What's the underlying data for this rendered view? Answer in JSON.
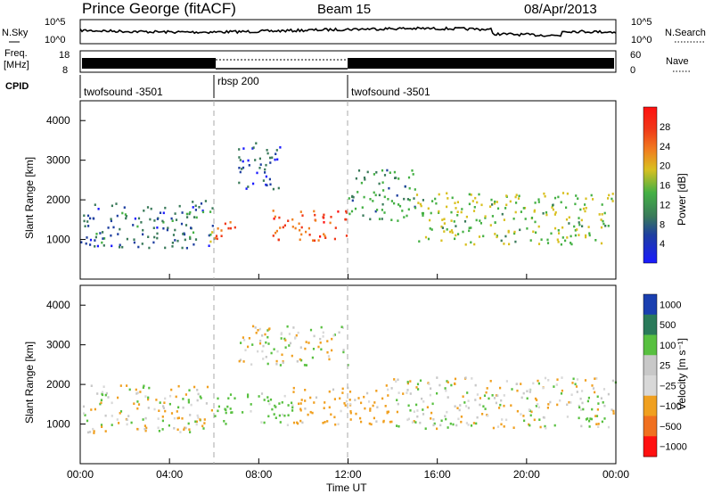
{
  "header": {
    "station": "Prince George (fitACF)",
    "beam": "Beam 15",
    "date": "08/Apr/2013"
  },
  "noise_panel": {
    "left_label": "N.Sky",
    "right_label": "N.Search",
    "left_ticks": [
      "10^5",
      "10^0"
    ],
    "right_ticks": [
      "10^5",
      "10^0"
    ]
  },
  "freq_panel": {
    "left_label_1": "Freq.",
    "left_label_2": "[MHz]",
    "left_ticks": [
      "18",
      "8"
    ],
    "right_label": "Nave",
    "right_ticks": [
      "60",
      "0"
    ]
  },
  "cpid": {
    "label": "CPID",
    "segments": [
      {
        "name": "twofsound -3501",
        "start_hour": 0
      },
      {
        "name": "rbsp 200",
        "start_hour": 6
      },
      {
        "name": "twofsound -3501",
        "start_hour": 12
      }
    ]
  },
  "time_axis": {
    "label": "Time UT",
    "ticks": [
      "00:00",
      "04:00",
      "08:00",
      "12:00",
      "16:00",
      "20:00",
      "00:00"
    ]
  },
  "power_panel": {
    "ylabel": "Slant Range [km]",
    "yticks": [
      "1000",
      "2000",
      "3000",
      "4000"
    ],
    "colorbar_label": "Power [dB]",
    "colorbar_ticks": [
      "4",
      "8",
      "12",
      "16",
      "20",
      "24",
      "28"
    ]
  },
  "velocity_panel": {
    "ylabel": "Slant Range [km]",
    "yticks": [
      "1000",
      "2000",
      "3000",
      "4000"
    ],
    "colorbar_label": "Velocity [m s⁻¹]",
    "colorbar_ticks": [
      "1000",
      "500",
      "100",
      "25",
      "−25",
      "−100",
      "−500",
      "−1000"
    ]
  },
  "chart_data": [
    {
      "type": "heatmap",
      "title": "Power",
      "xlabel": "Time UT",
      "ylabel": "Slant Range [km]",
      "xlim_hours": [
        0,
        24
      ],
      "ylim_km": [
        0,
        4500
      ],
      "colorbar": {
        "label": "Power [dB]",
        "range": [
          0,
          32
        ]
      },
      "scatter_regions": [
        {
          "t0": 0.0,
          "t1": 6.0,
          "r0": 800,
          "r1": 2000,
          "value_dB": 10
        },
        {
          "t0": 5.8,
          "t1": 7.0,
          "r0": 900,
          "r1": 1500,
          "value_dB": 26
        },
        {
          "t0": 8.5,
          "t1": 12.0,
          "r0": 1000,
          "r1": 1800,
          "value_dB": 28
        },
        {
          "t0": 7.0,
          "t1": 9.0,
          "r0": 2300,
          "r1": 3500,
          "value_dB": 8
        },
        {
          "t0": 12.0,
          "t1": 15.0,
          "r0": 1500,
          "r1": 2800,
          "value_dB": 14
        },
        {
          "t0": 15.0,
          "t1": 24.0,
          "r0": 900,
          "r1": 2200,
          "value_dB": 18
        }
      ]
    },
    {
      "type": "heatmap",
      "title": "Velocity",
      "xlabel": "Time UT",
      "ylabel": "Slant Range [km]",
      "xlim_hours": [
        0,
        24
      ],
      "ylim_km": [
        0,
        4500
      ],
      "colorbar": {
        "label": "Velocity [m s⁻¹]",
        "range": [
          -1000,
          1000
        ]
      },
      "scatter_regions": [
        {
          "t0": 0.0,
          "t1": 6.0,
          "r0": 800,
          "r1": 2000,
          "value_ms": 0
        },
        {
          "t0": 6.0,
          "t1": 9.5,
          "r0": 1000,
          "r1": 1800,
          "value_ms": 150
        },
        {
          "t0": 9.5,
          "t1": 14.0,
          "r0": 1000,
          "r1": 2000,
          "value_ms": -150
        },
        {
          "t0": 7.0,
          "t1": 12.0,
          "r0": 2500,
          "r1": 3500,
          "value_ms": 0
        },
        {
          "t0": 14.0,
          "t1": 24.0,
          "r0": 900,
          "r1": 2200,
          "value_ms": 0
        }
      ]
    }
  ]
}
